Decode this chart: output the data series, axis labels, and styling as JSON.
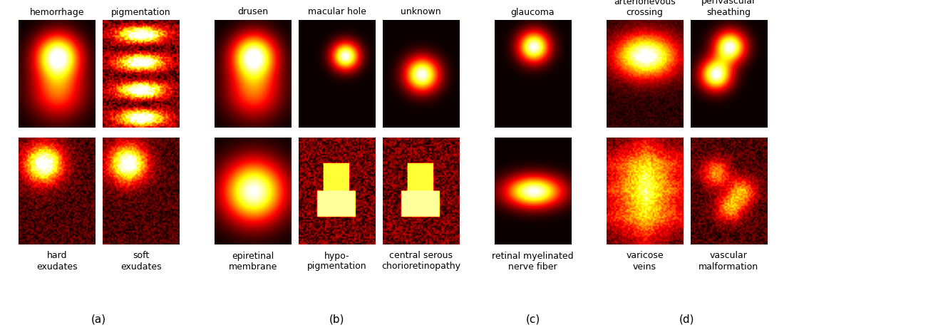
{
  "groups": [
    {
      "label": "(a)",
      "top_labels": [
        "hemorrhage",
        "pigmentation"
      ],
      "bottom_labels": [
        "hard\nexudates",
        "soft\nexudates"
      ],
      "n_cols": 2,
      "n_rows": 2
    },
    {
      "label": "(b)",
      "top_labels": [
        "drusen",
        "macular hole",
        "unknown"
      ],
      "bottom_labels": [
        "epiretinal\nmembrane",
        "hypo-\npigmentation",
        "central serous\nchorioretinopathy"
      ],
      "n_cols": 3,
      "n_rows": 2
    },
    {
      "label": "(c)",
      "top_labels": [
        "glaucoma"
      ],
      "bottom_labels": [
        "retinal myelinated\nnerve fiber"
      ],
      "n_cols": 1,
      "n_rows": 2
    },
    {
      "label": "(d)",
      "top_labels": [
        "arterionevous\ncrossing",
        "perivascular\nsheathing"
      ],
      "bottom_labels": [
        "varicose\nveins",
        "vascular\nmalformation"
      ],
      "n_cols": 2,
      "n_rows": 2
    }
  ],
  "bg_color": "white",
  "text_color": "black",
  "label_fontsize": 9,
  "sublabel_fontsize": 11,
  "colormap": "hot"
}
